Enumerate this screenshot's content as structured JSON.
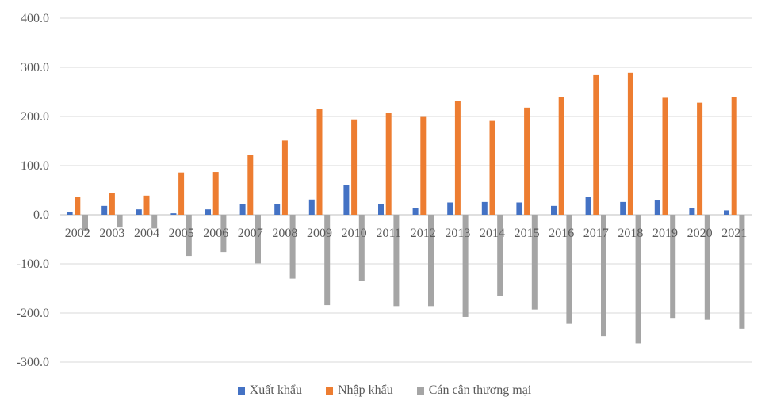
{
  "chart_data": {
    "type": "bar",
    "categories": [
      "2002",
      "2003",
      "2004",
      "2005",
      "2006",
      "2007",
      "2008",
      "2009",
      "2010",
      "2011",
      "2012",
      "2013",
      "2014",
      "2015",
      "2016",
      "2017",
      "2018",
      "2019",
      "2020",
      "2021"
    ],
    "series": [
      {
        "name": "Xuất khẩu",
        "color": "#4472C4",
        "values": [
          5,
          18,
          11,
          3,
          11,
          21,
          21,
          31,
          60,
          21,
          13,
          25,
          26,
          25,
          18,
          37,
          26,
          29,
          14,
          9
        ]
      },
      {
        "name": "Nhập khẩu",
        "color": "#ED7D31",
        "values": [
          37,
          44,
          39,
          86,
          87,
          121,
          151,
          215,
          194,
          207,
          199,
          232,
          191,
          218,
          240,
          284,
          289,
          238,
          228,
          240
        ]
      },
      {
        "name": "Cán cân thương mại",
        "color": "#A5A5A5",
        "values": [
          -32,
          -26,
          -28,
          -84,
          -76,
          -99,
          -130,
          -184,
          -134,
          -186,
          -186,
          -208,
          -165,
          -193,
          -222,
          -247,
          -262,
          -210,
          -214,
          -232
        ]
      }
    ],
    "y_ticks": [
      "400.0",
      "300.0",
      "200.0",
      "100.0",
      "0.0",
      "-100.0",
      "-200.0",
      "-300.0"
    ],
    "ylim": [
      -300,
      400
    ],
    "grid": true,
    "legend_position": "bottom"
  }
}
